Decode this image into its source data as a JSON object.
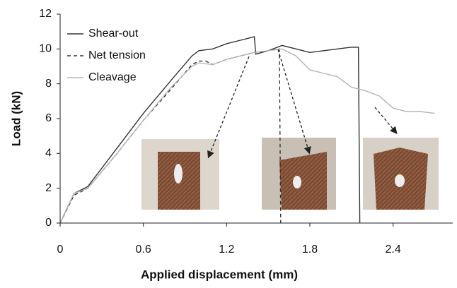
{
  "chart_data": {
    "type": "line",
    "x_label": "Applied displacement (mm)",
    "y_label": "Load (kN)",
    "xlim": [
      0,
      2.83
    ],
    "xticks": [
      0,
      0.6,
      1.2,
      1.8,
      2.4
    ],
    "ylim": [
      0,
      12
    ],
    "yticks": [
      0,
      2,
      4,
      6,
      8,
      10,
      12
    ],
    "grid": false,
    "legend": "top-left",
    "series": [
      {
        "name": "Shear-out",
        "color": "#333333",
        "dash": "solid",
        "x": [
          0,
          0.1,
          0.2,
          0.4,
          0.6,
          0.8,
          0.95,
          1.0,
          1.1,
          1.2,
          1.3,
          1.4,
          1.41,
          1.5,
          1.6,
          1.7,
          1.8,
          1.9,
          2.0,
          2.1,
          2.15,
          2.16
        ],
        "values": [
          0,
          1.7,
          2.1,
          4.2,
          6.3,
          8.2,
          9.6,
          9.9,
          10.0,
          10.3,
          10.5,
          10.7,
          9.7,
          9.9,
          10.2,
          10.0,
          9.8,
          9.9,
          10.0,
          10.1,
          10.1,
          0
        ]
      },
      {
        "name": "Net tension",
        "color": "#333333",
        "dash": "dashed",
        "x": [
          0,
          0.1,
          0.2,
          0.4,
          0.6,
          0.8,
          0.95,
          1.0,
          1.05,
          1.1,
          1.2,
          1.3,
          1.4,
          1.5,
          1.58,
          1.59
        ],
        "values": [
          0,
          1.6,
          2.0,
          3.9,
          5.9,
          7.7,
          9.1,
          9.3,
          9.3,
          9.1,
          9.4,
          9.6,
          9.8,
          9.9,
          10.0,
          0
        ]
      },
      {
        "name": "Cleavage",
        "color": "#b5b5b5",
        "dash": "solid",
        "x": [
          0,
          0.1,
          0.2,
          0.4,
          0.6,
          0.8,
          0.95,
          1.0,
          1.1,
          1.2,
          1.4,
          1.6,
          1.7,
          1.8,
          1.9,
          2.0,
          2.1,
          2.2,
          2.3,
          2.4,
          2.5,
          2.6,
          2.7
        ],
        "values": [
          0,
          1.7,
          2.0,
          3.9,
          5.9,
          7.8,
          9.0,
          9.2,
          9.1,
          9.4,
          9.8,
          10.0,
          9.6,
          8.8,
          8.6,
          8.4,
          7.8,
          7.6,
          7.3,
          6.6,
          6.4,
          6.4,
          6.3
        ]
      }
    ]
  }
}
